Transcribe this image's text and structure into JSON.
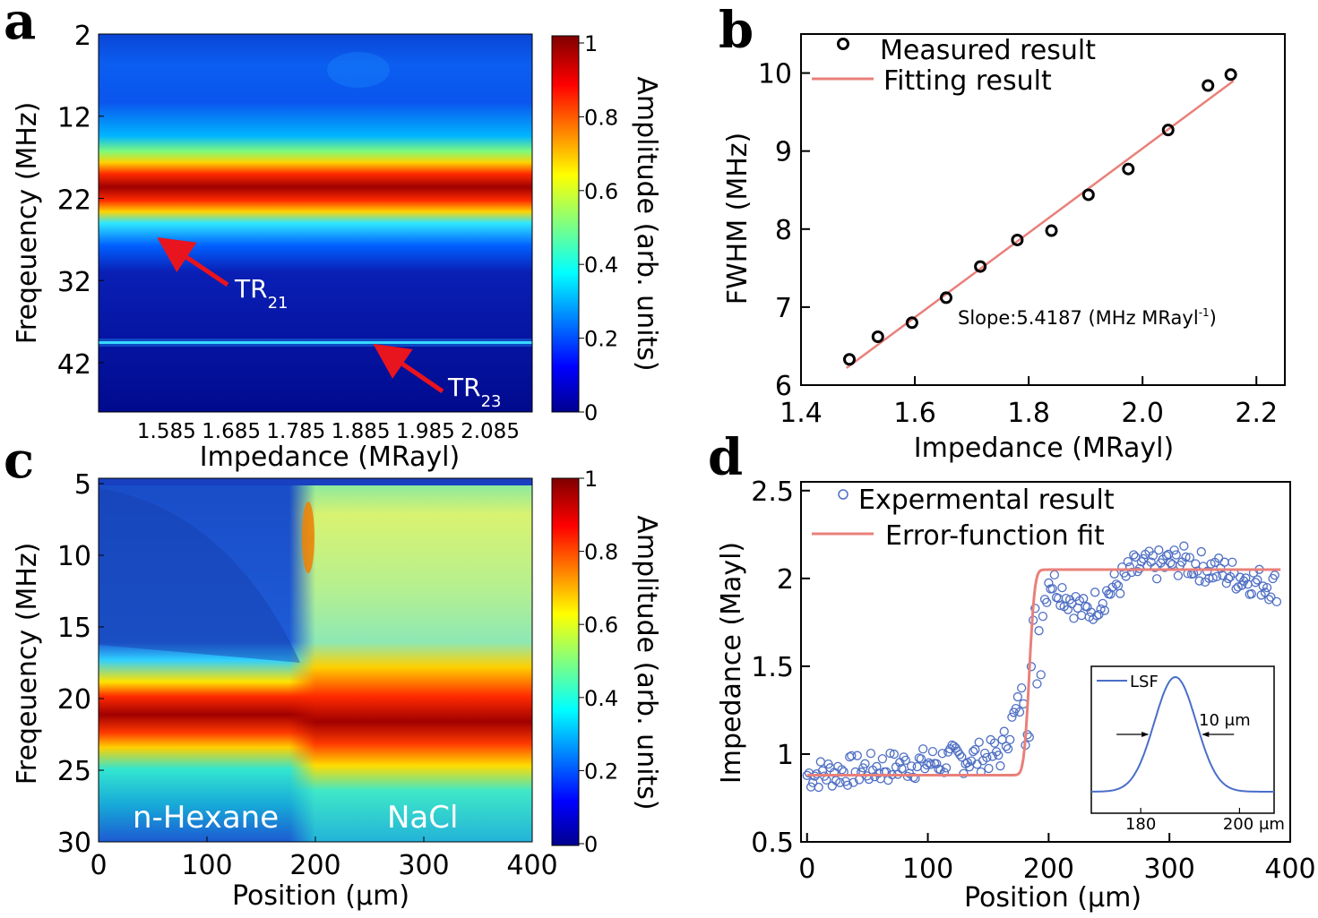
{
  "panels": {
    "a": "a",
    "b": "b",
    "c": "c",
    "d": "d"
  },
  "colors": {
    "fit_line": "#e9807a",
    "scatter_d": "#4f6fc4",
    "lsf": "#4a6ec9",
    "arrow": "#e8141e"
  },
  "chart_data": [
    {
      "id": "a",
      "type": "heatmap",
      "xlabel": "Impedance (MRayl)",
      "ylabel": "Freqeuency (MHz)",
      "x_ticks": [
        "1.585",
        "1.685",
        "1.785",
        "1.885",
        "1.985",
        "2.085"
      ],
      "x_tick_values": [
        1.585,
        1.685,
        1.785,
        1.885,
        1.985,
        2.085
      ],
      "xlim": [
        1.48,
        2.15
      ],
      "y_ticks": [
        "2",
        "12",
        "22",
        "32",
        "42"
      ],
      "y_tick_values": [
        2,
        12,
        22,
        32,
        42
      ],
      "ylim": [
        2,
        48
      ],
      "colorbar": {
        "label": "Amplitude (arb. units)",
        "ticks": [
          "1",
          "0.8",
          "0.6",
          "0.4",
          "0.2",
          "0"
        ],
        "range": [
          0,
          1
        ]
      },
      "bands": [
        {
          "name": "TR21",
          "center_mhz": 22.5,
          "peak": 1.0
        },
        {
          "name": "TR23",
          "center_mhz": 40.0,
          "peak": 0.35
        }
      ],
      "annotations": [
        {
          "text": "TR",
          "sub": "21"
        },
        {
          "text": "TR",
          "sub": "23"
        }
      ]
    },
    {
      "id": "b",
      "type": "scatter",
      "xlabel": "Impedance (MRayl)",
      "ylabel": "FWHM (MHz)",
      "xlim": [
        1.4,
        2.25
      ],
      "ylim": [
        6,
        10.5
      ],
      "x_ticks": [
        "1.4",
        "1.6",
        "1.8",
        "2.0",
        "2.2"
      ],
      "x_tick_values": [
        1.4,
        1.6,
        1.8,
        2.0,
        2.2
      ],
      "y_ticks": [
        "6",
        "7",
        "8",
        "9",
        "10"
      ],
      "y_tick_values": [
        6,
        7,
        8,
        9,
        10
      ],
      "legend": [
        "Measured result",
        "Fitting result"
      ],
      "annotation": {
        "text": "Slope:5.4187 (MHz MRayl",
        "sup": "-1",
        "tail": ")"
      },
      "series": [
        {
          "name": "Measured result",
          "x": [
            1.485,
            1.535,
            1.595,
            1.655,
            1.715,
            1.78,
            1.84,
            1.905,
            1.975,
            2.045,
            2.115,
            2.155
          ],
          "y": [
            6.33,
            6.62,
            6.8,
            7.12,
            7.52,
            7.86,
            7.98,
            8.44,
            8.77,
            9.27,
            9.84,
            9.98
          ]
        },
        {
          "name": "Fitting result",
          "x": [
            1.48,
            2.16
          ],
          "y": [
            6.22,
            9.9
          ]
        }
      ]
    },
    {
      "id": "c",
      "type": "heatmap",
      "xlabel": "Position (μm)",
      "ylabel": "Freqeuency (MHz)",
      "xlim": [
        0,
        400
      ],
      "ylim": [
        5,
        30
      ],
      "x_ticks": [
        "0",
        "100",
        "200",
        "300",
        "400"
      ],
      "x_tick_values": [
        0,
        100,
        200,
        300,
        400
      ],
      "y_ticks": [
        "5",
        "10",
        "15",
        "20",
        "25",
        "30"
      ],
      "y_tick_values": [
        5,
        10,
        15,
        20,
        25,
        30
      ],
      "colorbar": {
        "label": "Amplitude (arb. units)",
        "ticks": [
          "1",
          "0.8",
          "0.6",
          "0.4",
          "0.2",
          "0"
        ],
        "range": [
          0,
          1
        ]
      },
      "regions": [
        {
          "label": "n-Hexane",
          "from_um": 0,
          "to_um": 185
        },
        {
          "label": "NaCl",
          "from_um": 185,
          "to_um": 400
        }
      ],
      "bands": [
        {
          "name": "main",
          "center_mhz": 22.5,
          "peak": 1.0
        }
      ]
    },
    {
      "id": "d",
      "type": "scatter",
      "xlabel": "Position (μm)",
      "ylabel": "Impedance (Mayl)",
      "xlim": [
        -5,
        400
      ],
      "ylim": [
        0.5,
        2.55
      ],
      "x_ticks": [
        "0",
        "100",
        "200",
        "300",
        "400"
      ],
      "x_tick_values": [
        0,
        100,
        200,
        300,
        400
      ],
      "y_ticks": [
        "0.5",
        "1",
        "1.5",
        "2",
        "2.5"
      ],
      "y_tick_values": [
        0.5,
        1,
        1.5,
        2,
        2.5
      ],
      "legend": [
        "Expermental result",
        "Error-function fit"
      ],
      "fit": {
        "low": 0.88,
        "high": 2.05,
        "center_um": 184,
        "width_um": 5
      },
      "experimental_trend": [
        {
          "x": 0,
          "y": 0.88
        },
        {
          "x": 100,
          "y": 0.95
        },
        {
          "x": 160,
          "y": 1.0
        },
        {
          "x": 185,
          "y": 1.45
        },
        {
          "x": 200,
          "y": 2.0
        },
        {
          "x": 230,
          "y": 1.8
        },
        {
          "x": 270,
          "y": 2.05
        },
        {
          "x": 310,
          "y": 2.1
        },
        {
          "x": 390,
          "y": 1.95
        }
      ],
      "inset": {
        "legend": "LSF",
        "x_ticks": [
          "180",
          "200 μm"
        ],
        "x_tick_values": [
          180,
          200
        ],
        "xlim": [
          170,
          207
        ],
        "peak_um": 187,
        "fwhm_label": "10 μm",
        "fwhm_um": 10
      }
    }
  ]
}
